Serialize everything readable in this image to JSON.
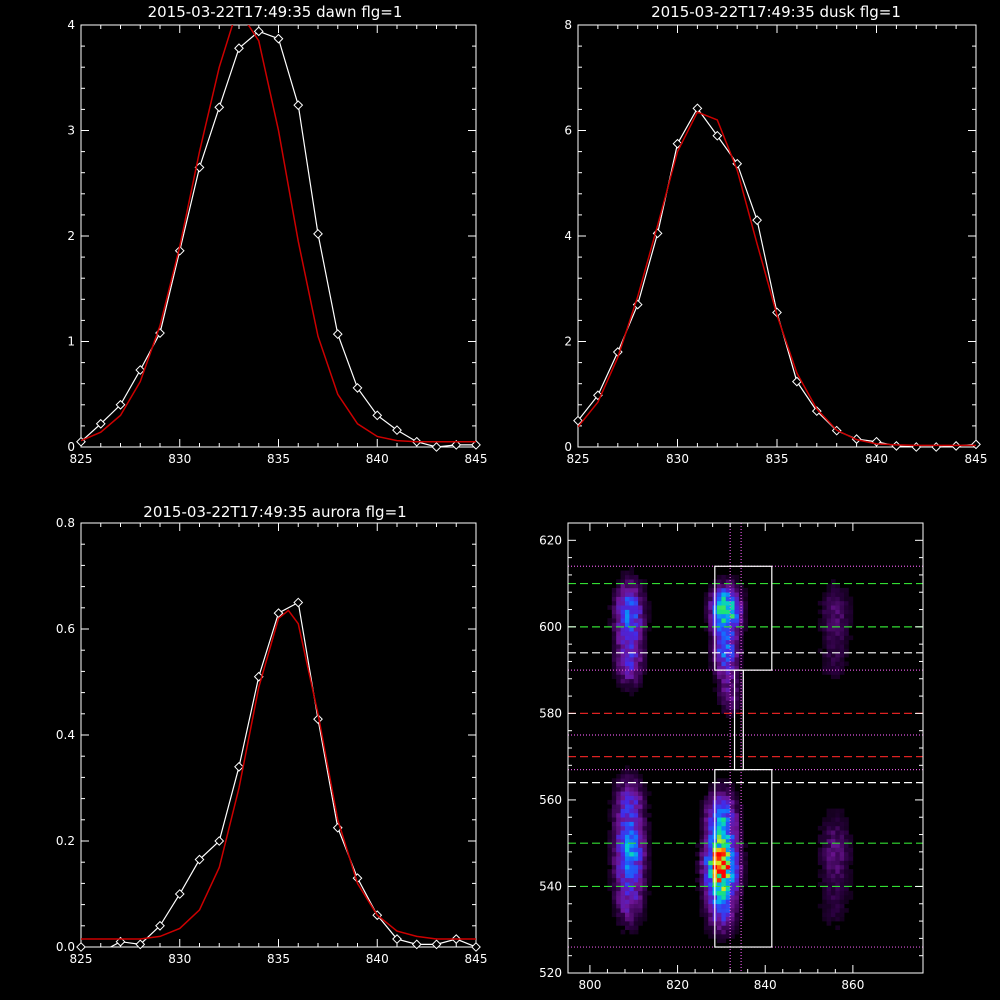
{
  "colors": {
    "background": "#000000",
    "axes": "#ffffff",
    "measured": "#ffffff",
    "fit": "#cc0000",
    "guide_green": "#33dd33",
    "guide_white": "#ffffff",
    "guide_red": "#dd2222",
    "guide_magenta": "#dd55dd"
  },
  "chart_data": [
    {
      "type": "line",
      "title": "2015-03-22T17:49:35 dawn flg=1",
      "xlim": [
        825,
        845
      ],
      "ylim": [
        0,
        4
      ],
      "x_ticks": [
        "825",
        "830",
        "835",
        "840",
        "845"
      ],
      "y_ticks": [
        "0",
        "1",
        "2",
        "3",
        "4"
      ],
      "series": [
        {
          "marker": "diamond",
          "color": "#ffffff",
          "x": [
            825,
            826,
            827,
            828,
            829,
            830,
            831,
            832,
            833,
            834,
            835,
            836,
            837,
            838,
            839,
            840,
            841,
            842,
            843,
            844,
            845
          ],
          "y": [
            0.05,
            0.22,
            0.4,
            0.73,
            1.08,
            1.86,
            2.65,
            3.22,
            3.78,
            3.94,
            3.87,
            3.24,
            2.02,
            1.07,
            0.56,
            0.3,
            0.16,
            0.05,
            0.0,
            0.02,
            0.02
          ]
        },
        {
          "marker": "none",
          "color": "#cc0000",
          "x": [
            825,
            826,
            827,
            828,
            829,
            830,
            831,
            832,
            832.7,
            833.3,
            834,
            835,
            836,
            837,
            838,
            839,
            840,
            841,
            842,
            843,
            844,
            845
          ],
          "y": [
            0.06,
            0.14,
            0.3,
            0.62,
            1.15,
            1.9,
            2.8,
            3.6,
            4.02,
            4.05,
            3.85,
            3.0,
            1.95,
            1.05,
            0.5,
            0.22,
            0.1,
            0.06,
            0.05,
            0.05,
            0.05,
            0.05
          ]
        }
      ]
    },
    {
      "type": "line",
      "title": "2015-03-22T17:49:35 dusk flg=1",
      "xlim": [
        825,
        845
      ],
      "ylim": [
        0,
        8
      ],
      "x_ticks": [
        "825",
        "830",
        "835",
        "840",
        "845"
      ],
      "y_ticks": [
        "0",
        "2",
        "4",
        "6",
        "8"
      ],
      "series": [
        {
          "marker": "diamond",
          "color": "#ffffff",
          "x": [
            825,
            826,
            827,
            828,
            829,
            830,
            831,
            832,
            833,
            834,
            835,
            836,
            837,
            838,
            839,
            840,
            841,
            842,
            843,
            844,
            845
          ],
          "y": [
            0.5,
            0.98,
            1.8,
            2.7,
            4.05,
            5.75,
            6.42,
            5.9,
            5.37,
            4.3,
            2.55,
            1.24,
            0.68,
            0.31,
            0.15,
            0.1,
            0.02,
            0.0,
            0.0,
            0.02,
            0.05
          ]
        },
        {
          "marker": "none",
          "color": "#cc0000",
          "x": [
            825,
            826,
            827,
            828,
            829,
            830,
            831,
            832,
            833,
            834,
            835,
            836,
            837,
            838,
            839,
            840,
            841,
            842,
            843,
            844,
            845
          ],
          "y": [
            0.38,
            0.85,
            1.7,
            2.85,
            4.2,
            5.6,
            6.35,
            6.2,
            5.25,
            3.85,
            2.5,
            1.4,
            0.72,
            0.32,
            0.14,
            0.06,
            0.04,
            0.03,
            0.03,
            0.03,
            0.03
          ]
        }
      ]
    },
    {
      "type": "line",
      "title": "2015-03-22T17:49:35 aurora flg=1",
      "xlim": [
        825,
        845
      ],
      "ylim": [
        0,
        0.8
      ],
      "x_ticks": [
        "825",
        "830",
        "835",
        "840",
        "845"
      ],
      "y_ticks": [
        "0.0",
        "0.2",
        "0.4",
        "0.6",
        "0.8"
      ],
      "series": [
        {
          "marker": "diamond",
          "color": "#ffffff",
          "x": [
            825,
            826,
            827,
            828,
            829,
            830,
            831,
            832,
            833,
            834,
            835,
            836,
            837,
            838,
            839,
            840,
            841,
            842,
            843,
            844,
            845
          ],
          "y": [
            0.0,
            -0.01,
            0.01,
            0.005,
            0.04,
            0.1,
            0.165,
            0.2,
            0.34,
            0.51,
            0.63,
            0.65,
            0.43,
            0.225,
            0.13,
            0.06,
            0.015,
            0.005,
            0.005,
            0.015,
            0.0
          ]
        },
        {
          "marker": "none",
          "color": "#cc0000",
          "x": [
            825,
            826,
            827,
            828,
            829,
            830,
            831,
            832,
            833,
            834,
            835,
            835.5,
            836,
            837,
            838,
            839,
            840,
            841,
            842,
            843,
            844,
            845
          ],
          "y": [
            0.015,
            0.015,
            0.015,
            0.015,
            0.02,
            0.035,
            0.07,
            0.15,
            0.3,
            0.49,
            0.62,
            0.635,
            0.61,
            0.44,
            0.24,
            0.12,
            0.06,
            0.03,
            0.02,
            0.015,
            0.015,
            0.015
          ]
        }
      ]
    },
    {
      "type": "heatmap",
      "xlim": [
        795,
        876
      ],
      "ylim": [
        520,
        624
      ],
      "x_ticks": [
        "800",
        "820",
        "840",
        "860"
      ],
      "y_ticks": [
        "520",
        "540",
        "560",
        "580",
        "600",
        "620"
      ],
      "blobs": [
        {
          "x": 809,
          "y": 603,
          "sx": 2.2,
          "sy": 5,
          "amp": 0.45
        },
        {
          "x": 809,
          "y": 592,
          "sx": 2.2,
          "sy": 4,
          "amp": 0.28
        },
        {
          "x": 831,
          "y": 604,
          "sx": 2.2,
          "sy": 3.5,
          "amp": 0.75
        },
        {
          "x": 831,
          "y": 594,
          "sx": 2.0,
          "sy": 4,
          "amp": 0.42
        },
        {
          "x": 832,
          "y": 584,
          "sx": 1.8,
          "sy": 3,
          "amp": 0.2
        },
        {
          "x": 856,
          "y": 603,
          "sx": 2.5,
          "sy": 5,
          "amp": 0.16
        },
        {
          "x": 856,
          "y": 592,
          "sx": 2.5,
          "sy": 4,
          "amp": 0.09
        },
        {
          "x": 809,
          "y": 548,
          "sx": 2.3,
          "sy": 6,
          "amp": 0.52
        },
        {
          "x": 809,
          "y": 560,
          "sx": 2.3,
          "sy": 4,
          "amp": 0.25
        },
        {
          "x": 809,
          "y": 536,
          "sx": 2.3,
          "sy": 4,
          "amp": 0.2
        },
        {
          "x": 830,
          "y": 545,
          "sx": 2.4,
          "sy": 4.5,
          "amp": 1.0
        },
        {
          "x": 830,
          "y": 556,
          "sx": 2.3,
          "sy": 4,
          "amp": 0.5
        },
        {
          "x": 830,
          "y": 535,
          "sx": 2.3,
          "sy": 4,
          "amp": 0.35
        },
        {
          "x": 856,
          "y": 548,
          "sx": 2.6,
          "sy": 6,
          "amp": 0.18
        },
        {
          "x": 856,
          "y": 535,
          "sx": 2.6,
          "sy": 4,
          "amp": 0.08
        }
      ],
      "boxes": [
        {
          "x0": 828.5,
          "x1": 841.5,
          "y0": 590,
          "y1": 614
        },
        {
          "x0": 828.5,
          "x1": 841.5,
          "y0": 526,
          "y1": 567
        }
      ],
      "connector": {
        "x0": 833,
        "x1": 835,
        "y0": 567,
        "y1": 590
      },
      "vlines": [
        {
          "x": 832,
          "color": "#dd55dd",
          "dash": "1,2"
        },
        {
          "x": 834.5,
          "color": "#dd55dd",
          "dash": "1,2"
        }
      ],
      "hlines": [
        {
          "y": 614,
          "color": "#dd55dd",
          "dash": "1,2"
        },
        {
          "y": 610,
          "color": "#33dd33",
          "dash": "8,4"
        },
        {
          "y": 600,
          "color": "#33dd33",
          "dash": "8,4"
        },
        {
          "y": 594,
          "color": "#ffffff",
          "dash": "8,4"
        },
        {
          "y": 590,
          "color": "#dd55dd",
          "dash": "1,2"
        },
        {
          "y": 580,
          "color": "#dd2222",
          "dash": "8,4"
        },
        {
          "y": 575,
          "color": "#dd55dd",
          "dash": "1,2"
        },
        {
          "y": 570,
          "color": "#dd2222",
          "dash": "8,4"
        },
        {
          "y": 567,
          "color": "#dd55dd",
          "dash": "1,2"
        },
        {
          "y": 564,
          "color": "#ffffff",
          "dash": "8,4"
        },
        {
          "y": 550,
          "color": "#33dd33",
          "dash": "8,4"
        },
        {
          "y": 540,
          "color": "#33dd33",
          "dash": "8,4"
        },
        {
          "y": 526,
          "color": "#dd55dd",
          "dash": "1,2"
        }
      ]
    }
  ]
}
